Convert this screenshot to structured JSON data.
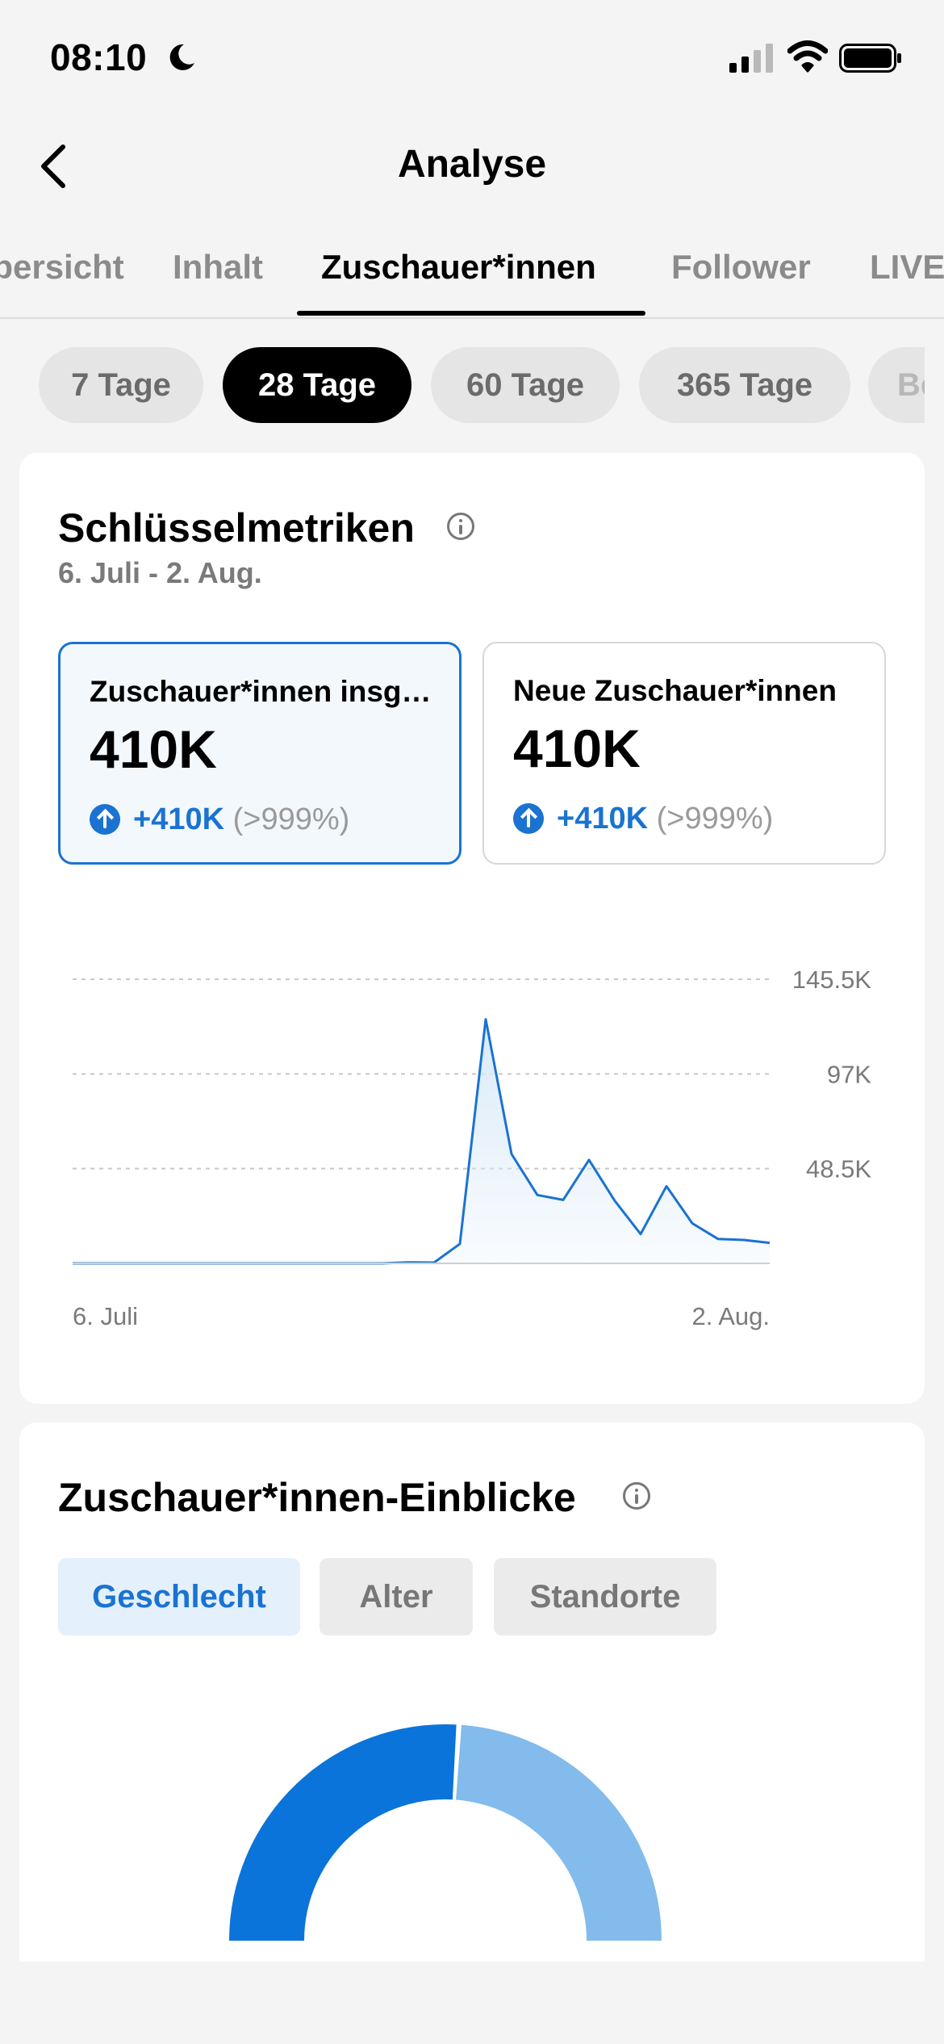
{
  "status": {
    "time": "08:10"
  },
  "header": {
    "title": "Analyse"
  },
  "tabs": [
    {
      "label": "Übersicht"
    },
    {
      "label": "Inhalt"
    },
    {
      "label": "Zuschauer*innen"
    },
    {
      "label": "Follower"
    },
    {
      "label": "LIVE"
    }
  ],
  "ranges": [
    {
      "label": "7 Tage"
    },
    {
      "label": "28 Tage"
    },
    {
      "label": "60 Tage"
    },
    {
      "label": "365 Tage"
    },
    {
      "label": "Benutzerdefiniert"
    }
  ],
  "metrics": {
    "title": "Schlüsselmetriken",
    "date_range": "6. Juli - 2. Aug.",
    "cards": [
      {
        "label": "Zuschauer*innen insgesamt",
        "value": "410K",
        "change": "+410K",
        "change_pct": "(>999%)"
      },
      {
        "label": "Neue Zuschauer*innen",
        "value": "410K",
        "change": "+410K",
        "change_pct": "(>999%)"
      }
    ]
  },
  "chart_data": {
    "type": "area",
    "x_start_label": "6. Juli",
    "x_end_label": "2. Aug.",
    "y_tick_labels": [
      "48.5K",
      "97K",
      "145.5K"
    ],
    "ylim": [
      0,
      145500
    ],
    "grid": true,
    "values": [
      0,
      0,
      0,
      0,
      0,
      0,
      0,
      0,
      0,
      0,
      0,
      0,
      0,
      500,
      400,
      10000,
      125000,
      56000,
      35000,
      32500,
      53000,
      32000,
      15000,
      39500,
      20500,
      12500,
      12000,
      10500
    ],
    "colors": {
      "line": "#1a73d1",
      "fill": "#dcebf8",
      "grid": "#c8c8c8"
    }
  },
  "insights": {
    "title": "Zuschauer*innen-Einblicke",
    "segments": [
      {
        "label": "Geschlecht"
      },
      {
        "label": "Alter"
      },
      {
        "label": "Standorte"
      }
    ],
    "gender_share": [
      0.52,
      0.48
    ],
    "colors": [
      "#0a74da",
      "#82bbec"
    ]
  }
}
